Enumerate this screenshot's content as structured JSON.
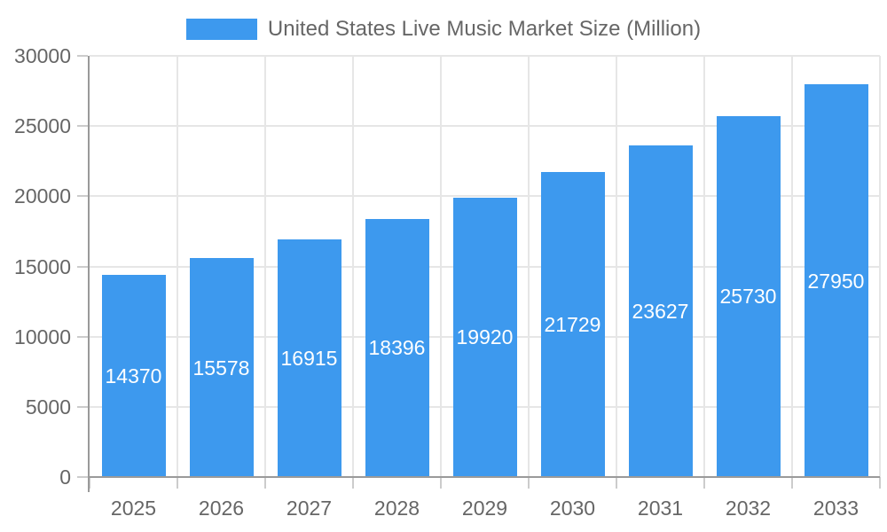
{
  "chart_data": {
    "type": "bar",
    "title": "United States Live Music Market Size (Million)",
    "legend": [
      "United States Live Music Market Size (Million)"
    ],
    "legend_position": "top",
    "categories": [
      "2025",
      "2026",
      "2027",
      "2028",
      "2029",
      "2030",
      "2031",
      "2032",
      "2033"
    ],
    "values": [
      14370,
      15578,
      16915,
      18396,
      19920,
      21729,
      23627,
      25730,
      27950
    ],
    "xlabel": "",
    "ylabel": "",
    "ylim": [
      0,
      30000
    ],
    "yticks": [
      0,
      5000,
      10000,
      15000,
      20000,
      25000,
      30000
    ],
    "grid": true,
    "bar_color": "#3D99EE",
    "grid_color": "#e6e6e6",
    "axis_color": "#9a9a9a",
    "tick_text_color": "#666666",
    "value_label_color": "#ffffff"
  }
}
